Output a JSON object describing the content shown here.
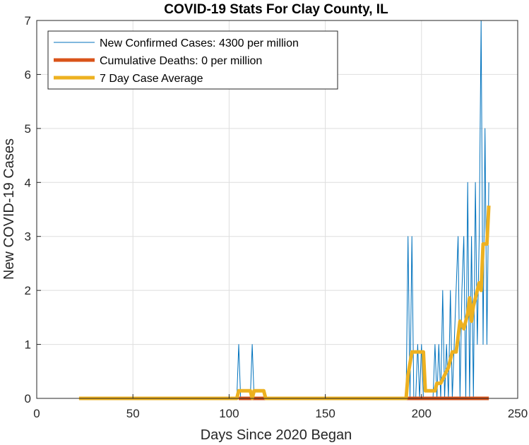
{
  "chart_data": {
    "type": "line",
    "title": "COVID-19 Stats For Clay County, IL",
    "xlabel": "Days Since 2020 Began",
    "ylabel": "New COVID-19 Cases",
    "xlim": [
      0,
      250
    ],
    "ylim": [
      0,
      7
    ],
    "xticks": [
      0,
      50,
      100,
      150,
      200,
      250
    ],
    "yticks": [
      0,
      1,
      2,
      3,
      4,
      5,
      6,
      7
    ],
    "grid": true,
    "legend_position": "top-left",
    "series": [
      {
        "name": "New Confirmed Cases: 4300 per million",
        "color": "#0072bd",
        "x": [
          22,
          104,
          105,
          106,
          111,
          112,
          113,
          192,
          193,
          194,
          195,
          196,
          197,
          198,
          199,
          200,
          201,
          202,
          203,
          204,
          205,
          206,
          207,
          208,
          209,
          210,
          211,
          212,
          213,
          214,
          215,
          216,
          217,
          218,
          219,
          220,
          221,
          222,
          223,
          224,
          225,
          226,
          227,
          228,
          229,
          230,
          231,
          232,
          233,
          234,
          235
        ],
        "y": [
          0,
          0,
          1,
          0,
          0,
          1,
          0,
          0,
          3,
          0,
          3,
          0,
          0,
          1,
          0,
          1,
          0,
          0,
          0,
          0,
          0,
          0,
          1,
          0,
          1,
          0,
          2,
          0,
          1,
          0,
          2,
          0,
          1,
          2,
          3,
          0,
          2,
          3,
          0,
          4,
          0,
          3,
          0,
          4,
          1,
          3,
          7,
          1,
          5,
          1,
          4
        ]
      },
      {
        "name": "Cumulative Deaths: 0 per million",
        "color": "#d95319",
        "x": [
          105,
          119,
          192,
          235
        ],
        "y": [
          0,
          0,
          0,
          0
        ]
      },
      {
        "name": "7 Day Case Average",
        "color": "#edb120",
        "x": [
          22,
          104,
          105,
          111,
          112,
          113,
          118,
          119,
          192,
          193,
          195,
          196,
          197,
          201,
          202,
          207,
          208,
          210,
          212,
          214,
          216,
          218,
          219,
          220,
          222,
          224,
          225,
          226,
          227,
          229,
          230,
          231,
          232,
          233,
          234,
          235
        ],
        "y": [
          0,
          0,
          0.14,
          0.14,
          0.0,
          0.14,
          0.14,
          0,
          0,
          0.43,
          0.86,
          0.86,
          0.86,
          0.86,
          0.14,
          0.14,
          0.28,
          0.28,
          0.43,
          0.57,
          0.86,
          0.86,
          1.14,
          1.43,
          1.29,
          1.57,
          1.86,
          1.43,
          1.71,
          2.0,
          2.14,
          2.0,
          2.86,
          2.86,
          2.86,
          3.57
        ]
      }
    ]
  }
}
